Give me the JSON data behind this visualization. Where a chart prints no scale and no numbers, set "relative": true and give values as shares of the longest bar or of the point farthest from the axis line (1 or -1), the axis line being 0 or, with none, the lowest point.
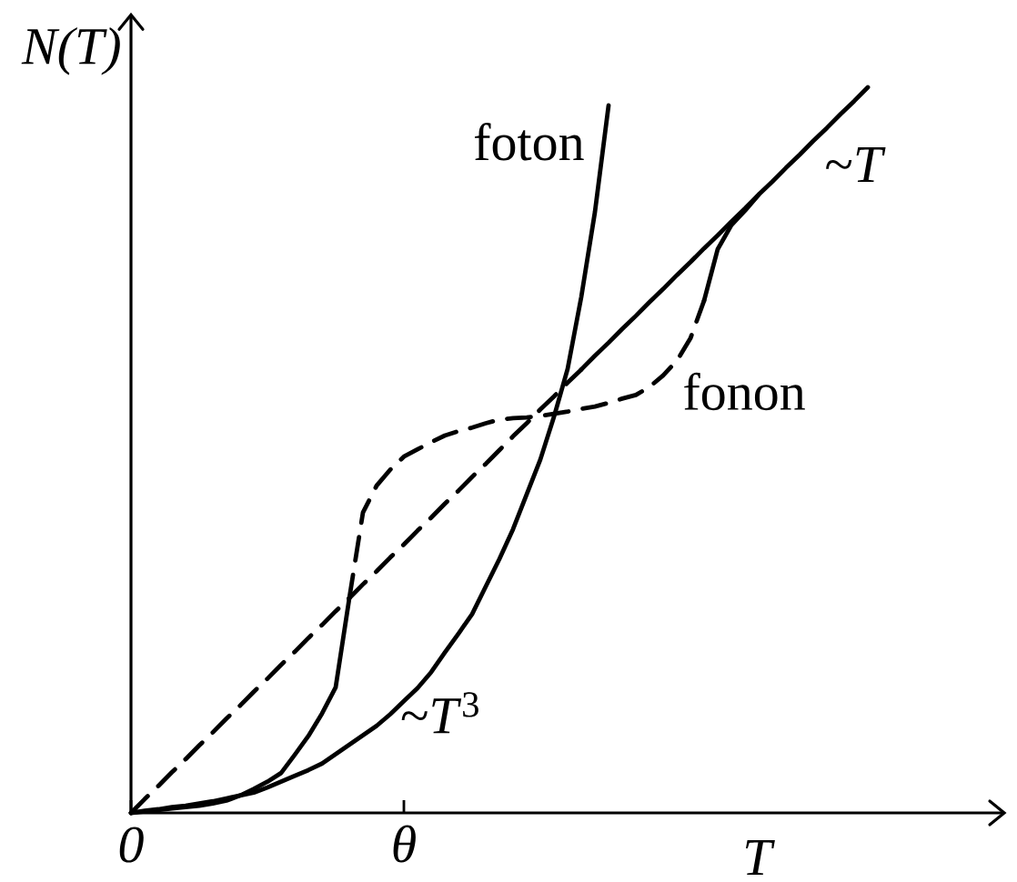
{
  "chart_data": {
    "type": "line",
    "relative": true,
    "xlabel": "T",
    "ylabel": "N(T)",
    "categories": [
      "0",
      null,
      null,
      null,
      null,
      null,
      null,
      null,
      null,
      null,
      null,
      null,
      null,
      null,
      null,
      null,
      null,
      null,
      null,
      null,
      "θ",
      null,
      null,
      null,
      null,
      null,
      null,
      null,
      null,
      null,
      null,
      null,
      null,
      null,
      null,
      null,
      null,
      null,
      null,
      null,
      null,
      null,
      null,
      null,
      null,
      null,
      null,
      null,
      null,
      null,
      null,
      null,
      null,
      null,
      null,
      null,
      null,
      null,
      null,
      null,
      null,
      null,
      null,
      null,
      null
    ],
    "series": [
      {
        "name": "foton",
        "color": "#000000",
        "line_style": "solid",
        "values": [
          0,
          0.003,
          0.005,
          0.008,
          0.01,
          0.013,
          0.016,
          0.02,
          0.024,
          0.028,
          0.035,
          0.043,
          0.051,
          0.059,
          0.068,
          0.081,
          0.094,
          0.107,
          0.12,
          0.136,
          0.154,
          0.172,
          0.194,
          0.221,
          0.247,
          0.274,
          0.312,
          0.35,
          0.391,
          0.439,
          0.487,
          0.546,
          0.612,
          0.711,
          0.828,
          0.975,
          null,
          null,
          null,
          null,
          null,
          null,
          null,
          null,
          null,
          null,
          null,
          null,
          null,
          null,
          null,
          null,
          null,
          null,
          null,
          null,
          null,
          null,
          null,
          null,
          null,
          null,
          null,
          null,
          null
        ]
      },
      {
        "color": "#000000",
        "line_style": "solid",
        "values": [
          0,
          0.002,
          0.004,
          0.006,
          0.008,
          0.01,
          0.013,
          0.017,
          0.024,
          0.033,
          0.043,
          0.055,
          0.08,
          0.106,
          0.137,
          0.173,
          0.296,
          null,
          null,
          null,
          null,
          null,
          null,
          null,
          null,
          null,
          null,
          null,
          null,
          null,
          null,
          null,
          null,
          null,
          null,
          null,
          null,
          null,
          null,
          null,
          null,
          null,
          null,
          null,
          null,
          null,
          null,
          null,
          null,
          null,
          null,
          null,
          null,
          null,
          null,
          null,
          null,
          null,
          null,
          null,
          null,
          null,
          null,
          null,
          null
        ]
      },
      {
        "name": "fonon",
        "color": "#000000",
        "line_style": "dashed",
        "values": [
          null,
          null,
          null,
          null,
          null,
          null,
          null,
          null,
          null,
          null,
          null,
          null,
          null,
          null,
          null,
          null,
          0.296,
          0.414,
          0.451,
          0.473,
          0.491,
          0.501,
          0.511,
          0.52,
          0.526,
          0.531,
          0.537,
          0.542,
          0.544,
          0.545,
          0.547,
          0.55,
          0.553,
          0.557,
          0.56,
          0.565,
          0.571,
          0.576,
          0.587,
          0.603,
          0.623,
          0.654,
          0.706,
          null,
          null,
          null,
          null,
          null,
          null,
          null,
          null,
          null,
          null,
          null,
          null,
          null,
          null,
          null,
          null,
          null,
          null,
          null,
          null,
          null,
          null
        ]
      },
      {
        "color": "#000000",
        "line_style": "solid",
        "values": [
          null,
          null,
          null,
          null,
          null,
          null,
          null,
          null,
          null,
          null,
          null,
          null,
          null,
          null,
          null,
          null,
          null,
          null,
          null,
          null,
          null,
          null,
          null,
          null,
          null,
          null,
          null,
          null,
          null,
          null,
          null,
          null,
          null,
          null,
          null,
          null,
          null,
          null,
          null,
          null,
          null,
          null,
          0.706,
          0.777,
          0.81,
          0.83,
          0.852,
          null,
          null,
          null,
          null,
          null,
          null,
          null,
          null,
          null,
          null,
          null,
          null,
          null,
          null,
          null,
          null,
          null,
          null
        ]
      },
      {
        "color": "#000000",
        "line_style": "dashed",
        "values": [
          0,
          0.019,
          0.037,
          0.056,
          0.074,
          0.093,
          0.111,
          0.13,
          0.148,
          0.167,
          0.185,
          0.204,
          0.222,
          0.241,
          0.259,
          0.278,
          0.296,
          0.315,
          0.333,
          0.352,
          0.37,
          0.389,
          0.407,
          0.426,
          0.444,
          0.463,
          0.481,
          0.5,
          0.519,
          0.537,
          0.556,
          0.574,
          0.593,
          0.611,
          null,
          null,
          null,
          null,
          null,
          null,
          null,
          null,
          null,
          null,
          null,
          null,
          null,
          null,
          null,
          null,
          null,
          null,
          null,
          null,
          null,
          null,
          null,
          null,
          null,
          null,
          null,
          null,
          null,
          null,
          null
        ]
      },
      {
        "name": "~*T*",
        "color": "#000000",
        "line_style": "solid",
        "values": [
          null,
          null,
          null,
          null,
          null,
          null,
          null,
          null,
          null,
          null,
          null,
          null,
          null,
          null,
          null,
          null,
          null,
          null,
          null,
          null,
          null,
          null,
          null,
          null,
          null,
          null,
          null,
          null,
          null,
          null,
          null,
          null,
          null,
          0.611,
          0.63,
          0.648,
          0.667,
          0.685,
          0.704,
          0.722,
          0.741,
          0.759,
          0.778,
          0.796,
          0.815,
          0.833,
          0.852,
          0.87,
          0.889,
          0.907,
          0.926,
          0.944,
          0.963,
          0.981,
          1.0,
          null,
          null,
          null,
          null,
          null,
          null,
          null,
          null,
          null,
          null
        ]
      }
    ],
    "annotations": [
      "~*T*$^{3}$"
    ]
  }
}
